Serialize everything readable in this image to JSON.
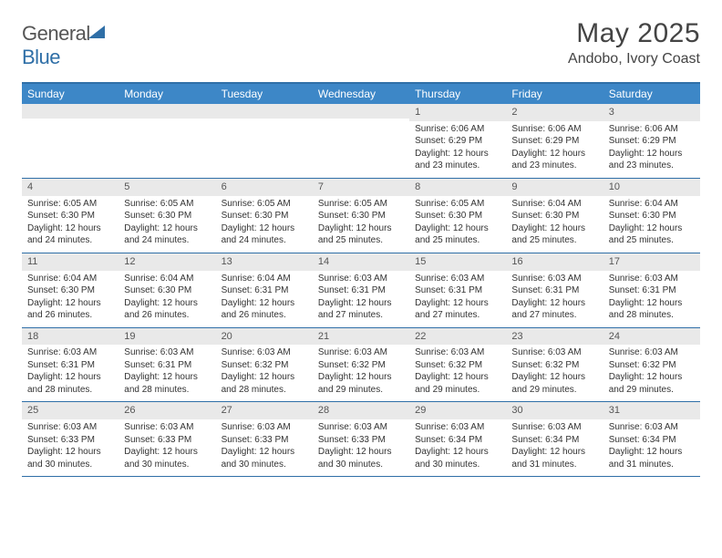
{
  "logo": {
    "word1": "General",
    "word2": "Blue"
  },
  "title": "May 2025",
  "location": "Andobo, Ivory Coast",
  "colors": {
    "header_bg": "#3d87c7",
    "border": "#2f6fa7",
    "daynum_bg": "#e9e9e9",
    "text": "#333333",
    "title_text": "#444444"
  },
  "day_names": [
    "Sunday",
    "Monday",
    "Tuesday",
    "Wednesday",
    "Thursday",
    "Friday",
    "Saturday"
  ],
  "weeks": [
    [
      {
        "n": "",
        "sr": "",
        "ss": "",
        "dl": ""
      },
      {
        "n": "",
        "sr": "",
        "ss": "",
        "dl": ""
      },
      {
        "n": "",
        "sr": "",
        "ss": "",
        "dl": ""
      },
      {
        "n": "",
        "sr": "",
        "ss": "",
        "dl": ""
      },
      {
        "n": "1",
        "sr": "Sunrise: 6:06 AM",
        "ss": "Sunset: 6:29 PM",
        "dl": "Daylight: 12 hours and 23 minutes."
      },
      {
        "n": "2",
        "sr": "Sunrise: 6:06 AM",
        "ss": "Sunset: 6:29 PM",
        "dl": "Daylight: 12 hours and 23 minutes."
      },
      {
        "n": "3",
        "sr": "Sunrise: 6:06 AM",
        "ss": "Sunset: 6:29 PM",
        "dl": "Daylight: 12 hours and 23 minutes."
      }
    ],
    [
      {
        "n": "4",
        "sr": "Sunrise: 6:05 AM",
        "ss": "Sunset: 6:30 PM",
        "dl": "Daylight: 12 hours and 24 minutes."
      },
      {
        "n": "5",
        "sr": "Sunrise: 6:05 AM",
        "ss": "Sunset: 6:30 PM",
        "dl": "Daylight: 12 hours and 24 minutes."
      },
      {
        "n": "6",
        "sr": "Sunrise: 6:05 AM",
        "ss": "Sunset: 6:30 PM",
        "dl": "Daylight: 12 hours and 24 minutes."
      },
      {
        "n": "7",
        "sr": "Sunrise: 6:05 AM",
        "ss": "Sunset: 6:30 PM",
        "dl": "Daylight: 12 hours and 25 minutes."
      },
      {
        "n": "8",
        "sr": "Sunrise: 6:05 AM",
        "ss": "Sunset: 6:30 PM",
        "dl": "Daylight: 12 hours and 25 minutes."
      },
      {
        "n": "9",
        "sr": "Sunrise: 6:04 AM",
        "ss": "Sunset: 6:30 PM",
        "dl": "Daylight: 12 hours and 25 minutes."
      },
      {
        "n": "10",
        "sr": "Sunrise: 6:04 AM",
        "ss": "Sunset: 6:30 PM",
        "dl": "Daylight: 12 hours and 25 minutes."
      }
    ],
    [
      {
        "n": "11",
        "sr": "Sunrise: 6:04 AM",
        "ss": "Sunset: 6:30 PM",
        "dl": "Daylight: 12 hours and 26 minutes."
      },
      {
        "n": "12",
        "sr": "Sunrise: 6:04 AM",
        "ss": "Sunset: 6:30 PM",
        "dl": "Daylight: 12 hours and 26 minutes."
      },
      {
        "n": "13",
        "sr": "Sunrise: 6:04 AM",
        "ss": "Sunset: 6:31 PM",
        "dl": "Daylight: 12 hours and 26 minutes."
      },
      {
        "n": "14",
        "sr": "Sunrise: 6:03 AM",
        "ss": "Sunset: 6:31 PM",
        "dl": "Daylight: 12 hours and 27 minutes."
      },
      {
        "n": "15",
        "sr": "Sunrise: 6:03 AM",
        "ss": "Sunset: 6:31 PM",
        "dl": "Daylight: 12 hours and 27 minutes."
      },
      {
        "n": "16",
        "sr": "Sunrise: 6:03 AM",
        "ss": "Sunset: 6:31 PM",
        "dl": "Daylight: 12 hours and 27 minutes."
      },
      {
        "n": "17",
        "sr": "Sunrise: 6:03 AM",
        "ss": "Sunset: 6:31 PM",
        "dl": "Daylight: 12 hours and 28 minutes."
      }
    ],
    [
      {
        "n": "18",
        "sr": "Sunrise: 6:03 AM",
        "ss": "Sunset: 6:31 PM",
        "dl": "Daylight: 12 hours and 28 minutes."
      },
      {
        "n": "19",
        "sr": "Sunrise: 6:03 AM",
        "ss": "Sunset: 6:31 PM",
        "dl": "Daylight: 12 hours and 28 minutes."
      },
      {
        "n": "20",
        "sr": "Sunrise: 6:03 AM",
        "ss": "Sunset: 6:32 PM",
        "dl": "Daylight: 12 hours and 28 minutes."
      },
      {
        "n": "21",
        "sr": "Sunrise: 6:03 AM",
        "ss": "Sunset: 6:32 PM",
        "dl": "Daylight: 12 hours and 29 minutes."
      },
      {
        "n": "22",
        "sr": "Sunrise: 6:03 AM",
        "ss": "Sunset: 6:32 PM",
        "dl": "Daylight: 12 hours and 29 minutes."
      },
      {
        "n": "23",
        "sr": "Sunrise: 6:03 AM",
        "ss": "Sunset: 6:32 PM",
        "dl": "Daylight: 12 hours and 29 minutes."
      },
      {
        "n": "24",
        "sr": "Sunrise: 6:03 AM",
        "ss": "Sunset: 6:32 PM",
        "dl": "Daylight: 12 hours and 29 minutes."
      }
    ],
    [
      {
        "n": "25",
        "sr": "Sunrise: 6:03 AM",
        "ss": "Sunset: 6:33 PM",
        "dl": "Daylight: 12 hours and 30 minutes."
      },
      {
        "n": "26",
        "sr": "Sunrise: 6:03 AM",
        "ss": "Sunset: 6:33 PM",
        "dl": "Daylight: 12 hours and 30 minutes."
      },
      {
        "n": "27",
        "sr": "Sunrise: 6:03 AM",
        "ss": "Sunset: 6:33 PM",
        "dl": "Daylight: 12 hours and 30 minutes."
      },
      {
        "n": "28",
        "sr": "Sunrise: 6:03 AM",
        "ss": "Sunset: 6:33 PM",
        "dl": "Daylight: 12 hours and 30 minutes."
      },
      {
        "n": "29",
        "sr": "Sunrise: 6:03 AM",
        "ss": "Sunset: 6:34 PM",
        "dl": "Daylight: 12 hours and 30 minutes."
      },
      {
        "n": "30",
        "sr": "Sunrise: 6:03 AM",
        "ss": "Sunset: 6:34 PM",
        "dl": "Daylight: 12 hours and 31 minutes."
      },
      {
        "n": "31",
        "sr": "Sunrise: 6:03 AM",
        "ss": "Sunset: 6:34 PM",
        "dl": "Daylight: 12 hours and 31 minutes."
      }
    ]
  ]
}
